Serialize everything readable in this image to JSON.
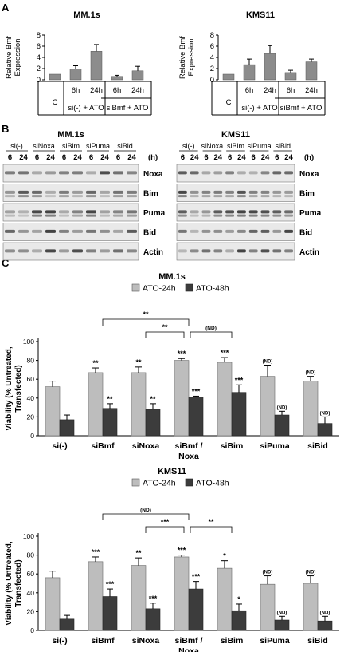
{
  "panel_labels": [
    "A",
    "B",
    "C"
  ],
  "colors": {
    "light_bar": "#bdbdbd",
    "dark_bar": "#3c3c3c",
    "plain_bar": "#8c8c8c"
  },
  "panelA": {
    "ylabel_line1": "Relative Bmf",
    "ylabel_line2": "Expression",
    "group_labels": [
      "si(-) + ATO",
      "siBmf + ATO"
    ]
  },
  "panelB": {
    "unit_label": "(h)",
    "time_labels": [
      "6",
      "24"
    ],
    "blot_rows": [
      "Noxa",
      "Bim",
      "Puma",
      "Bid",
      "Actin"
    ],
    "left": {
      "title": "MM.1s",
      "groups": [
        "si(-)",
        "siNoxa",
        "siBim",
        "siPuma",
        "siBid"
      ]
    },
    "right": {
      "title": "KMS11",
      "groups": [
        "si(-)",
        "siNoxa",
        "siBim",
        "siPuma",
        "siBid"
      ]
    }
  },
  "panelC": {
    "ylabel_line1": "Viability (% Untreated,",
    "ylabel_line2": "Transfected)",
    "brackets_top": [
      {
        "from": 1,
        "to": 3,
        "label": "**"
      },
      {
        "from": 2,
        "to": 3,
        "label": "**"
      },
      {
        "from": 3,
        "to": 4,
        "label": "(ND)"
      }
    ],
    "brackets_bottom": [
      {
        "from": 1,
        "to": 3,
        "label": "(ND)"
      },
      {
        "from": 2,
        "to": 3,
        "label": "***"
      },
      {
        "from": 3,
        "to": 4,
        "label": "**"
      }
    ]
  },
  "chart_data": [
    {
      "type": "bar",
      "title": "MM.1s",
      "ylabel": "Relative Bmf Expression",
      "categories": [
        "C",
        "6h",
        "24h",
        "6h",
        "24h"
      ],
      "values": [
        1.0,
        1.9,
        5.1,
        0.6,
        1.6
      ],
      "errors": [
        0,
        0.6,
        1.2,
        0.2,
        0.8
      ],
      "ylim": [
        0,
        8
      ],
      "yticks": [
        0,
        2,
        4,
        6,
        8
      ]
    },
    {
      "type": "bar",
      "title": "KMS11",
      "ylabel": "Relative Bmf Expression",
      "categories": [
        "C",
        "6h",
        "24h",
        "6h",
        "24h"
      ],
      "values": [
        1.0,
        2.7,
        4.7,
        1.3,
        3.2
      ],
      "errors": [
        0,
        1.0,
        1.4,
        0.4,
        0.5
      ],
      "ylim": [
        0,
        8
      ],
      "yticks": [
        0,
        2,
        4,
        6,
        8
      ]
    },
    {
      "type": "bar",
      "title": "MM.1s",
      "ylabel": "Viability (% Untreated, Transfected)",
      "categories": [
        "si(-)",
        "siBmf",
        "siNoxa",
        "siBmf / Noxa",
        "siBim",
        "siPuma",
        "siBid"
      ],
      "series": [
        {
          "name": "ATO-24h",
          "values": [
            52,
            67,
            67,
            80,
            78,
            63,
            58
          ],
          "errors": [
            6,
            5,
            6,
            2,
            5,
            12,
            5
          ],
          "stars": [
            "",
            "**",
            "**",
            "***",
            "***",
            "(ND)",
            "(ND)"
          ]
        },
        {
          "name": "ATO-48h",
          "values": [
            17,
            29,
            28,
            41,
            46,
            22,
            13
          ],
          "errors": [
            5,
            5,
            6,
            1,
            8,
            4,
            7
          ],
          "stars": [
            "",
            "**",
            "**",
            "***",
            "***",
            "(ND)",
            "(ND)"
          ]
        }
      ],
      "ylim": [
        0,
        100
      ],
      "yticks": [
        0,
        20,
        40,
        60,
        80,
        100
      ],
      "legend": "top"
    },
    {
      "type": "bar",
      "title": "KMS11",
      "ylabel": "Viability (% Untreated, Transfected)",
      "categories": [
        "si(-)",
        "siBmf",
        "siNoxa",
        "siBmf / Noxa",
        "siBim",
        "siPuma",
        "siBid"
      ],
      "series": [
        {
          "name": "ATO-24h",
          "values": [
            56,
            73,
            69,
            78,
            66,
            49,
            50
          ],
          "errors": [
            7,
            5,
            8,
            2,
            8,
            9,
            8
          ],
          "stars": [
            "",
            "***",
            "**",
            "***",
            "*",
            "(ND)",
            "(ND)"
          ]
        },
        {
          "name": "ATO-48h",
          "values": [
            12,
            36,
            23,
            44,
            21,
            11,
            10
          ],
          "errors": [
            4,
            8,
            6,
            8,
            7,
            4,
            5
          ],
          "stars": [
            "",
            "***",
            "***",
            "***",
            "*",
            "(ND)",
            "(ND)"
          ]
        }
      ],
      "ylim": [
        0,
        100
      ],
      "yticks": [
        0,
        20,
        40,
        60,
        80,
        100
      ],
      "legend": "top"
    }
  ]
}
